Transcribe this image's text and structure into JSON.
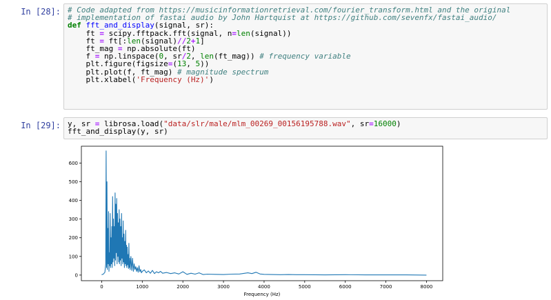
{
  "cells": [
    {
      "prompt": "In [28]:",
      "lines": [
        [
          {
            "t": "# Code adapted from https://musicinformationretrieval.com/fourier_transform.html and the original",
            "c": "cm"
          }
        ],
        [
          {
            "t": "# implementation of fastai audio by John Hartquist at https://github.com/sevenfx/fastai_audio/",
            "c": "cm"
          }
        ],
        [
          {
            "t": "def",
            "c": "kw"
          },
          {
            "t": " "
          },
          {
            "t": "fft_and_display",
            "c": "fn"
          },
          {
            "t": "(signal, sr):"
          }
        ],
        [
          {
            "t": "    ft "
          },
          {
            "t": "=",
            "c": "op"
          },
          {
            "t": " scipy.fftpack.fft(signal, n"
          },
          {
            "t": "=",
            "c": "op"
          },
          {
            "t": "len",
            "c": "bi"
          },
          {
            "t": "(signal))"
          }
        ],
        [
          {
            "t": "    ft "
          },
          {
            "t": "=",
            "c": "op"
          },
          {
            "t": " ft[:"
          },
          {
            "t": "len",
            "c": "bi"
          },
          {
            "t": "(signal)"
          },
          {
            "t": "//",
            "c": "op"
          },
          {
            "t": "2",
            "c": "num"
          },
          {
            "t": "+",
            "c": "op"
          },
          {
            "t": "1",
            "c": "num"
          },
          {
            "t": "]"
          }
        ],
        [
          {
            "t": "    ft_mag "
          },
          {
            "t": "=",
            "c": "op"
          },
          {
            "t": " np.absolute(ft)"
          }
        ],
        [
          {
            "t": "    f "
          },
          {
            "t": "=",
            "c": "op"
          },
          {
            "t": " np.linspace("
          },
          {
            "t": "0",
            "c": "num"
          },
          {
            "t": ", sr"
          },
          {
            "t": "/",
            "c": "op"
          },
          {
            "t": "2",
            "c": "num"
          },
          {
            "t": ", "
          },
          {
            "t": "len",
            "c": "bi"
          },
          {
            "t": "(ft_mag)) "
          },
          {
            "t": "# frequency variable",
            "c": "cm"
          }
        ],
        [
          {
            "t": "    plt.figure(figsize"
          },
          {
            "t": "=",
            "c": "op"
          },
          {
            "t": "("
          },
          {
            "t": "13",
            "c": "num"
          },
          {
            "t": ", "
          },
          {
            "t": "5",
            "c": "num"
          },
          {
            "t": "))"
          }
        ],
        [
          {
            "t": "    plt.plot(f, ft_mag) "
          },
          {
            "t": "# magnitude spectrum",
            "c": "cm"
          }
        ],
        [
          {
            "t": "    plt.xlabel("
          },
          {
            "t": "'Frequency (Hz)'",
            "c": "str"
          },
          {
            "t": ")"
          }
        ]
      ]
    },
    {
      "prompt": "In [29]:",
      "lines": [
        [
          {
            "t": "y, sr "
          },
          {
            "t": "=",
            "c": "op"
          },
          {
            "t": " librosa.load("
          },
          {
            "t": "\"data/slr/male/mlm_00269_00156195788.wav\"",
            "c": "str"
          },
          {
            "t": ", sr"
          },
          {
            "t": "=",
            "c": "op"
          },
          {
            "t": "16000",
            "c": "num"
          },
          {
            "t": ")"
          }
        ],
        [
          {
            "t": "fft_and_display(y, sr)"
          }
        ]
      ]
    }
  ],
  "chart_data": {
    "type": "line",
    "xlabel": "Frequency (Hz)",
    "ylabel": "",
    "xlim": [
      -500,
      8400
    ],
    "ylim": [
      -30,
      690
    ],
    "xticks": [
      0,
      1000,
      2000,
      3000,
      4000,
      5000,
      6000,
      7000,
      8000
    ],
    "yticks": [
      0,
      100,
      200,
      300,
      400,
      500,
      600
    ],
    "line_color": "#1f77b4",
    "series": [
      {
        "x": [
          0,
          40,
          80,
          100,
          110,
          120,
          130,
          140,
          150,
          160,
          170,
          180,
          190,
          200,
          210,
          220,
          230,
          240,
          250,
          260,
          270,
          280,
          290,
          300,
          310,
          320,
          330,
          340,
          350,
          360,
          370,
          380,
          390,
          400,
          410,
          420,
          430,
          440,
          450,
          460,
          470,
          480,
          490,
          500,
          510,
          520,
          530,
          540,
          550,
          560,
          570,
          580,
          590,
          600,
          610,
          620,
          630,
          640,
          650,
          660,
          670,
          680,
          690,
          700,
          720,
          740,
          760,
          780,
          800,
          820,
          840,
          860,
          880,
          900,
          920,
          940,
          960,
          980,
          1000,
          1050,
          1100,
          1150,
          1200,
          1250,
          1300,
          1350,
          1400,
          1450,
          1500,
          1600,
          1700,
          1800,
          1900,
          2000,
          2100,
          2200,
          2300,
          2400,
          2500,
          2600,
          2800,
          3000,
          3200,
          3400,
          3600,
          3700,
          3800,
          3900,
          4000,
          4200,
          4400,
          4600,
          4800,
          5000,
          5500,
          6000,
          6500,
          7000,
          7500,
          8000
        ],
        "y": [
          2,
          5,
          15,
          60,
          665,
          40,
          500,
          30,
          250,
          60,
          340,
          20,
          120,
          50,
          330,
          40,
          200,
          60,
          260,
          40,
          420,
          70,
          300,
          90,
          260,
          50,
          440,
          80,
          380,
          120,
          410,
          60,
          330,
          100,
          280,
          70,
          350,
          60,
          300,
          80,
          260,
          50,
          330,
          90,
          200,
          60,
          290,
          70,
          220,
          40,
          180,
          60,
          240,
          50,
          160,
          40,
          150,
          55,
          110,
          35,
          170,
          40,
          90,
          30,
          100,
          25,
          90,
          20,
          60,
          30,
          45,
          20,
          40,
          15,
          50,
          18,
          30,
          12,
          20,
          28,
          12,
          22,
          10,
          25,
          8,
          18,
          12,
          20,
          10,
          14,
          8,
          12,
          6,
          18,
          4,
          10,
          5,
          12,
          3,
          5,
          4,
          3,
          5,
          6,
          12,
          8,
          15,
          6,
          4,
          3,
          2,
          3,
          2,
          2,
          1,
          2,
          1,
          1,
          1,
          0
        ]
      }
    ]
  }
}
